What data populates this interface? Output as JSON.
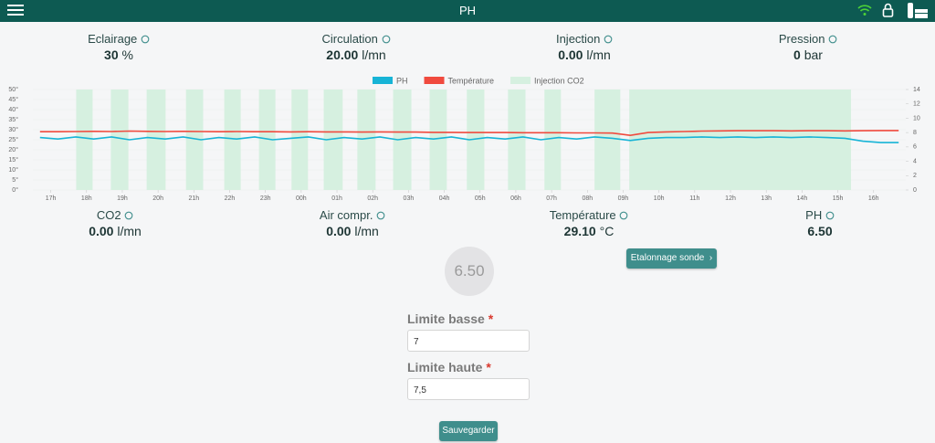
{
  "header": {
    "title": "PH"
  },
  "stats_top": [
    {
      "label": "Eclairage",
      "value": "30",
      "unit": "%"
    },
    {
      "label": "Circulation",
      "value": "20.00",
      "unit": "l/mn"
    },
    {
      "label": "Injection",
      "value": "0.00",
      "unit": "l/mn"
    },
    {
      "label": "Pression",
      "value": "0",
      "unit": "bar"
    }
  ],
  "chart_data": {
    "type": "line",
    "x": [
      16.7,
      17.2,
      17.7,
      18.2,
      18.7,
      19.2,
      19.7,
      20.2,
      20.7,
      21.2,
      21.7,
      22.2,
      22.7,
      23.2,
      23.7,
      24.2,
      24.7,
      25.2,
      25.7,
      26.2,
      26.7,
      27.2,
      27.7,
      28.2,
      28.7,
      29.2,
      29.7,
      30.2,
      30.7,
      31.2,
      31.7,
      32.2,
      32.7,
      33.2,
      33.7,
      34.2,
      34.7,
      35.2,
      35.7,
      36.2,
      36.7,
      37.2,
      37.7,
      38.2,
      38.7,
      39.2,
      39.7,
      40.2,
      40.7
    ],
    "series": [
      {
        "name": "PH",
        "color": "#17b4d6",
        "axis": "y2",
        "values": [
          7.3,
          7.1,
          7.4,
          7.1,
          7.4,
          7.0,
          7.3,
          7.1,
          7.4,
          7.0,
          7.3,
          7.1,
          7.4,
          7.0,
          7.2,
          7.4,
          7.0,
          7.3,
          7.1,
          7.4,
          7.0,
          7.3,
          7.1,
          7.4,
          7.0,
          7.3,
          7.1,
          7.4,
          7.0,
          7.3,
          7.1,
          7.4,
          7.2,
          6.9,
          7.2,
          7.3,
          7.3,
          7.4,
          7.3,
          7.4,
          7.3,
          7.4,
          7.3,
          7.4,
          7.3,
          7.2,
          6.8,
          6.6,
          6.6
        ]
      },
      {
        "name": "Température",
        "color": "#f04a3e",
        "values": [
          29.0,
          29.0,
          29.1,
          29.2,
          29.1,
          29.3,
          29.2,
          29.1,
          29.2,
          29.1,
          29.0,
          29.1,
          29.0,
          29.0,
          28.9,
          29.0,
          28.9,
          28.9,
          28.8,
          28.9,
          28.8,
          28.8,
          28.7,
          28.7,
          28.6,
          28.6,
          28.6,
          28.5,
          28.5,
          28.5,
          28.4,
          28.4,
          28.3,
          27.2,
          28.6,
          28.9,
          29.1,
          29.3,
          29.4,
          29.5,
          29.5,
          29.5,
          29.4,
          29.5,
          29.5,
          29.4,
          29.5,
          29.6,
          29.6
        ]
      },
      {
        "name": "Injection CO2",
        "color": "#d6f0e0",
        "bands": [
          [
            17.71,
            18.17
          ],
          [
            18.68,
            19.17
          ],
          [
            19.68,
            20.21
          ],
          [
            20.78,
            21.26
          ],
          [
            21.85,
            22.31
          ],
          [
            22.82,
            23.28
          ],
          [
            23.73,
            24.19
          ],
          [
            24.63,
            25.16
          ],
          [
            25.57,
            26.08
          ],
          [
            26.57,
            27.08
          ],
          [
            27.59,
            28.07
          ],
          [
            28.63,
            29.12
          ],
          [
            29.78,
            30.27
          ],
          [
            30.8,
            31.26
          ],
          [
            32.2,
            32.92
          ],
          [
            33.17,
            39.37
          ]
        ]
      }
    ],
    "xlim": [
      16.5,
      40.9
    ],
    "xticks": [
      {
        "value": 17,
        "label": "17h"
      },
      {
        "value": 18,
        "label": "18h"
      },
      {
        "value": 19,
        "label": "19h"
      },
      {
        "value": 20,
        "label": "20h"
      },
      {
        "value": 21,
        "label": "21h"
      },
      {
        "value": 22,
        "label": "22h"
      },
      {
        "value": 23,
        "label": "23h"
      },
      {
        "value": 24,
        "label": "00h"
      },
      {
        "value": 25,
        "label": "01h"
      },
      {
        "value": 26,
        "label": "02h"
      },
      {
        "value": 27,
        "label": "03h"
      },
      {
        "value": 28,
        "label": "04h"
      },
      {
        "value": 29,
        "label": "05h"
      },
      {
        "value": 30,
        "label": "06h"
      },
      {
        "value": 31,
        "label": "07h"
      },
      {
        "value": 32,
        "label": "08h"
      },
      {
        "value": 33,
        "label": "09h"
      },
      {
        "value": 34,
        "label": "10h"
      },
      {
        "value": 35,
        "label": "11h"
      },
      {
        "value": 36,
        "label": "12h"
      },
      {
        "value": 37,
        "label": "13h"
      },
      {
        "value": 38,
        "label": "14h"
      },
      {
        "value": 39,
        "label": "15h"
      },
      {
        "value": 40,
        "label": "16h"
      }
    ],
    "ylim": [
      0,
      50
    ],
    "yticks": [
      {
        "value": 0,
        "label": "0°"
      },
      {
        "value": 5,
        "label": "5°"
      },
      {
        "value": 10,
        "label": "10°"
      },
      {
        "value": 15,
        "label": "15°"
      },
      {
        "value": 20,
        "label": "20°"
      },
      {
        "value": 25,
        "label": "25°"
      },
      {
        "value": 30,
        "label": "30°"
      },
      {
        "value": 35,
        "label": "35°"
      },
      {
        "value": 40,
        "label": "40°"
      },
      {
        "value": 45,
        "label": "45°"
      },
      {
        "value": 50,
        "label": "50°"
      }
    ],
    "y2lim": [
      0,
      14
    ],
    "y2ticks": [
      0,
      2,
      4,
      6,
      8,
      10,
      12,
      14
    ],
    "grid": true,
    "legend": "top"
  },
  "stats_bottom": [
    {
      "label": "CO2",
      "value": "0.00",
      "unit": "l/mn"
    },
    {
      "label": "Air compr.",
      "value": "0.00",
      "unit": "l/mn"
    },
    {
      "label": "Température",
      "value": "29.10",
      "unit": "°C"
    },
    {
      "label": "PH",
      "value": "6.50"
    }
  ],
  "calibration_button": "Etalonnage sonde",
  "gauge": "6.50",
  "form": [
    {
      "label": "Limite basse",
      "required": "*",
      "value": "7"
    },
    {
      "label": "Limite haute",
      "required": "*",
      "value": "7,5"
    }
  ],
  "save_button": "Sauvegarder"
}
